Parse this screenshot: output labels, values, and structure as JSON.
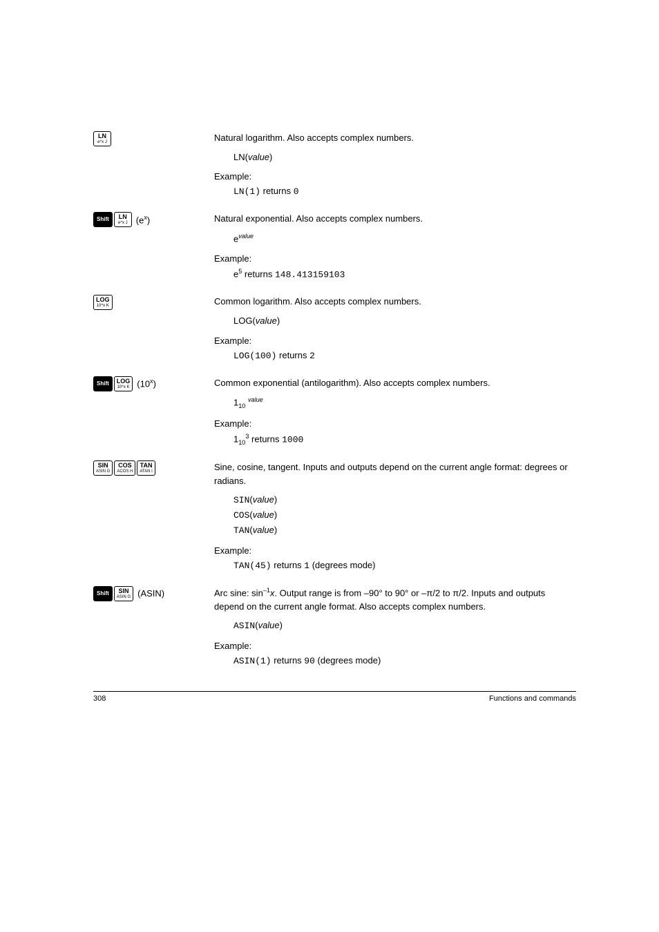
{
  "entries": [
    {
      "id": "ln",
      "desc": "Natural logarithm. Also accepts complex numbers.",
      "syntax_html": "LN(<span class='ital'>value</span>)",
      "example_label": "Example:",
      "example_html": "<span class='mono'>LN(1)</span> returns <span class='mono'>0</span>"
    },
    {
      "id": "ex",
      "desc": "Natural exponential. Also accepts complex numbers.",
      "syntax_html": "e<sup><span class='ital'>value</span></sup>",
      "example_label": "Example:",
      "example_html": "e<sup>5</sup> returns <span class='mono'>148.413159103</span>"
    },
    {
      "id": "log",
      "desc": "Common logarithm. Also accepts complex numbers.",
      "syntax_html": "LOG(<span class='ital'>value</span>)",
      "example_label": "Example:",
      "example_html": "<span class='mono'>LOG(100)</span> returns <span class='mono'>2</span>"
    },
    {
      "id": "tenx",
      "desc": "Common exponential (antilogarithm). Also accepts complex numbers.",
      "syntax_html": "1<sub>10</sub> <sup><span class='ital'>value</span></sup>",
      "example_label": "Example:",
      "example_html": "1<sub>10</sub><sup>3</sup> returns <span class='mono'>1000</span>"
    },
    {
      "id": "trig",
      "desc": "Sine, cosine, tangent. Inputs and outputs depend on the current angle format: degrees or radians.",
      "syntax_html": "<span class='mono'>SIN</span>(<span class='ital'>value</span>)<br><span class='mono'>COS</span>(<span class='ital'>value</span>)<br><span class='mono'>TAN</span>(<span class='ital'>value</span>)",
      "example_label": "Example:",
      "example_html": "<span class='mono'>TAN(45)</span> returns <span class='mono'>1</span> (degrees mode)"
    },
    {
      "id": "asin",
      "desc_html": "Arc sine: sin<sup>–1</sup><span class='ital'>x</span>. Output range is from –90° to 90° or –π/2 to π/2. Inputs and outputs depend on the current angle format. Also accepts complex numbers.",
      "syntax_html": "<span class='mono'>ASIN</span>(<span class='ital'>value</span>)",
      "example_label": "Example:",
      "example_html": "<span class='mono'>ASIN(1)</span> returns <span class='mono'>90</span> (degrees mode)"
    }
  ],
  "keys": {
    "shift": "Shift",
    "ln_main": "LN",
    "ln_sub": "e^x   J",
    "ex_suffix": "(e<sup>x</sup>)",
    "log_main": "LOG",
    "log_sub": "10^x   K",
    "tenx_suffix": "(10<sup>x</sup>)",
    "sin_main": "SIN",
    "sin_sub": "ASIN   G",
    "cos_main": "COS",
    "cos_sub": "ACOS   H",
    "tan_main": "TAN",
    "tan_sub": "ATAN   I",
    "asin_suffix": "(ASIN)"
  },
  "footer": {
    "page": "308",
    "section": "Functions and commands"
  }
}
